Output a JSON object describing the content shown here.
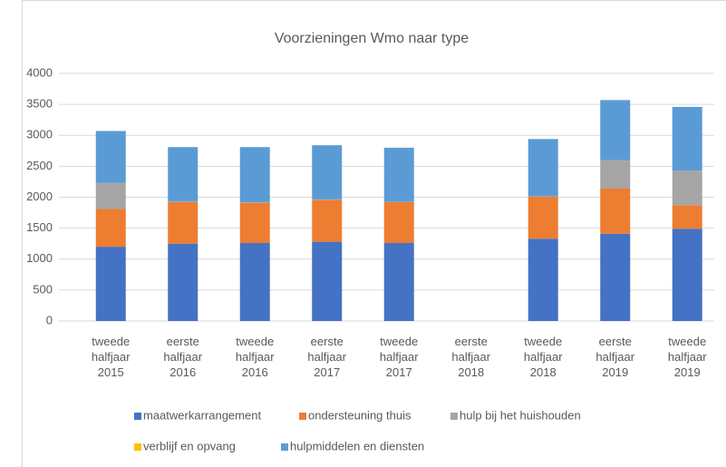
{
  "chart_data": {
    "type": "stacked_bar",
    "title": "Voorzieningen Wmo naar type",
    "categories": [
      "tweede halfjaar 2015",
      "eerste halfjaar 2016",
      "tweede halfjaar 2016",
      "eerste halfjaar 2017",
      "tweede halfjaar 2017",
      "eerste halfjaar 2018",
      "tweede halfjaar 2018",
      "eerste halfjaar 2019",
      "tweede halfjaar 2019"
    ],
    "series": [
      {
        "name": "maatwerkarrangement",
        "color": "#4472c4",
        "values": [
          1200,
          1250,
          1260,
          1280,
          1260,
          null,
          1330,
          1410,
          1490
        ]
      },
      {
        "name": "ondersteuning thuis",
        "color": "#ed7d31",
        "values": [
          610,
          670,
          650,
          680,
          660,
          null,
          680,
          730,
          380
        ]
      },
      {
        "name": "hulp bij het huishouden",
        "color": "#a5a5a5",
        "values": [
          420,
          15,
          10,
          5,
          5,
          null,
          5,
          460,
          560
        ]
      },
      {
        "name": "verblijf en opvang",
        "color": "#ffc000",
        "values": [
          0,
          0,
          0,
          0,
          0,
          null,
          0,
          0,
          0
        ]
      },
      {
        "name": "hulpmiddelen en diensten",
        "color": "#5b9bd5",
        "values": [
          840,
          875,
          890,
          875,
          875,
          null,
          925,
          970,
          1030
        ]
      }
    ],
    "ylim": [
      0,
      4000
    ],
    "yticks": [
      0,
      500,
      1000,
      1500,
      2000,
      2500,
      3000,
      3500,
      4000
    ],
    "grid": true,
    "legend": "bottom"
  }
}
